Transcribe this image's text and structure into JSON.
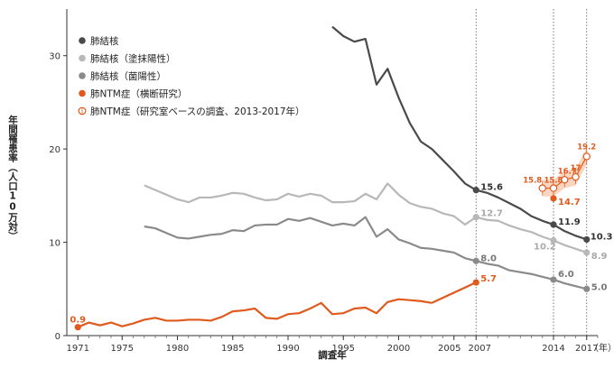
{
  "chart_data": {
    "type": "line",
    "xlabel": "調査年",
    "ylabel": "年間罹患率（人口10万対）",
    "x_unit": "（年）",
    "xlim": [
      1970,
      2018
    ],
    "ylim": [
      0,
      35
    ],
    "yticks": [
      0,
      10,
      20,
      30
    ],
    "xticks": [
      "1971",
      "1975",
      "1980",
      "1985",
      "1990",
      "1995",
      "2000",
      "2005",
      "2007",
      "2014",
      "2017"
    ],
    "reference_years": [
      2007,
      2014,
      2017
    ],
    "grid": false,
    "legend_position": "top-left",
    "series": [
      {
        "name": "肺結核",
        "color": "#4a4a4a",
        "marker": "filled",
        "x": [
          1994,
          1995,
          1996,
          1997,
          1998,
          1999,
          2000,
          2001,
          2002,
          2003,
          2004,
          2005,
          2006,
          2007,
          2008,
          2009,
          2010,
          2011,
          2012,
          2013,
          2014,
          2015,
          2016,
          2017
        ],
        "values": [
          33.1,
          32.1,
          31.5,
          31.8,
          26.9,
          28.6,
          25.5,
          22.8,
          20.8,
          20.0,
          18.8,
          17.6,
          16.3,
          15.6,
          15.3,
          14.8,
          14.2,
          13.6,
          12.8,
          12.3,
          11.9,
          11.2,
          10.7,
          10.3
        ],
        "labels": [
          {
            "x": 2007,
            "text": "15.6"
          },
          {
            "x": 2014,
            "text": "11.9"
          },
          {
            "x": 2017,
            "text": "10.3"
          }
        ]
      },
      {
        "name": "肺結核（塗抹陽性）",
        "color": "#b8b8b8",
        "marker": "filled",
        "x": [
          1977,
          1978,
          1979,
          1980,
          1981,
          1982,
          1983,
          1984,
          1985,
          1986,
          1987,
          1988,
          1989,
          1990,
          1991,
          1992,
          1993,
          1994,
          1995,
          1996,
          1997,
          1998,
          1999,
          2000,
          2001,
          2002,
          2003,
          2004,
          2005,
          2006,
          2007,
          2008,
          2009,
          2010,
          2011,
          2012,
          2013,
          2014,
          2015,
          2016,
          2017
        ],
        "values": [
          16.1,
          15.6,
          15.1,
          14.6,
          14.3,
          14.8,
          14.8,
          15.0,
          15.3,
          15.2,
          14.8,
          14.5,
          14.6,
          15.2,
          14.9,
          15.2,
          15.0,
          14.3,
          14.3,
          14.4,
          15.2,
          14.6,
          16.3,
          15.1,
          14.2,
          13.8,
          13.6,
          13.1,
          12.8,
          11.9,
          12.7,
          12.4,
          12.3,
          11.8,
          11.4,
          11.1,
          10.6,
          10.2,
          9.7,
          9.3,
          8.9
        ],
        "labels": [
          {
            "x": 2007,
            "text": "12.7"
          },
          {
            "x": 2014,
            "text": "10.2"
          },
          {
            "x": 2017,
            "text": "8.9"
          }
        ]
      },
      {
        "name": "肺結核（菌陽性）",
        "color": "#8a8a8a",
        "marker": "filled",
        "x": [
          1977,
          1978,
          1979,
          1980,
          1981,
          1982,
          1983,
          1984,
          1985,
          1986,
          1987,
          1988,
          1989,
          1990,
          1991,
          1992,
          1993,
          1994,
          1995,
          1996,
          1997,
          1998,
          1999,
          2000,
          2001,
          2002,
          2003,
          2004,
          2005,
          2006,
          2007,
          2008,
          2009,
          2010,
          2011,
          2012,
          2013,
          2014,
          2015,
          2016,
          2017
        ],
        "values": [
          11.7,
          11.5,
          11.0,
          10.5,
          10.4,
          10.6,
          10.8,
          10.9,
          11.3,
          11.2,
          11.8,
          11.9,
          11.9,
          12.5,
          12.3,
          12.6,
          12.2,
          11.8,
          12.0,
          11.8,
          12.7,
          10.6,
          11.4,
          10.3,
          9.9,
          9.4,
          9.3,
          9.1,
          8.9,
          8.3,
          8.0,
          7.7,
          7.5,
          7.0,
          6.8,
          6.6,
          6.3,
          6.0,
          5.6,
          5.3,
          5.0
        ],
        "labels": [
          {
            "x": 2007,
            "text": "8.0"
          },
          {
            "x": 2014,
            "text": "6.0"
          },
          {
            "x": 2017,
            "text": "5.0"
          }
        ]
      },
      {
        "name": "肺NTM症（横断研究）",
        "color": "#e05a1e",
        "marker": "filled",
        "x": [
          1971,
          1972,
          1973,
          1974,
          1975,
          1976,
          1977,
          1978,
          1979,
          1980,
          1981,
          1982,
          1983,
          1984,
          1985,
          1986,
          1987,
          1988,
          1989,
          1990,
          1991,
          1992,
          1993,
          1994,
          1995,
          1996,
          1997,
          1998,
          1999,
          2000,
          2001,
          2002,
          2003,
          2007
        ],
        "values": [
          0.9,
          1.4,
          1.1,
          1.4,
          1.0,
          1.3,
          1.7,
          1.9,
          1.6,
          1.6,
          1.7,
          1.7,
          1.6,
          2.0,
          2.6,
          2.7,
          2.9,
          1.9,
          1.8,
          2.3,
          2.4,
          2.9,
          3.5,
          2.3,
          2.4,
          2.9,
          3.0,
          2.4,
          3.6,
          3.9,
          3.8,
          3.7,
          3.5,
          5.7
        ],
        "labels": [
          {
            "x": 1971,
            "text": "0.9"
          },
          {
            "x": 2007,
            "text": "5.7"
          },
          {
            "x": 2014,
            "text": "14.7"
          }
        ],
        "extra_point": {
          "x": 2014,
          "value": 14.7
        }
      },
      {
        "name": "肺NTM症（研究室ベースの調査、2013-2017年）",
        "color": "#e05a1e",
        "marker": "open",
        "x": [
          2013,
          2014,
          2015,
          2016,
          2017
        ],
        "values": [
          15.8,
          15.8,
          16.7,
          17.0,
          19.2
        ],
        "labels": [
          {
            "x": 2013,
            "text": "15.8"
          },
          {
            "x": 2014,
            "text": "15.8"
          },
          {
            "x": 2015,
            "text": "16.7"
          },
          {
            "x": 2016,
            "text": "17"
          },
          {
            "x": 2017,
            "text": "19.2"
          }
        ]
      }
    ]
  }
}
